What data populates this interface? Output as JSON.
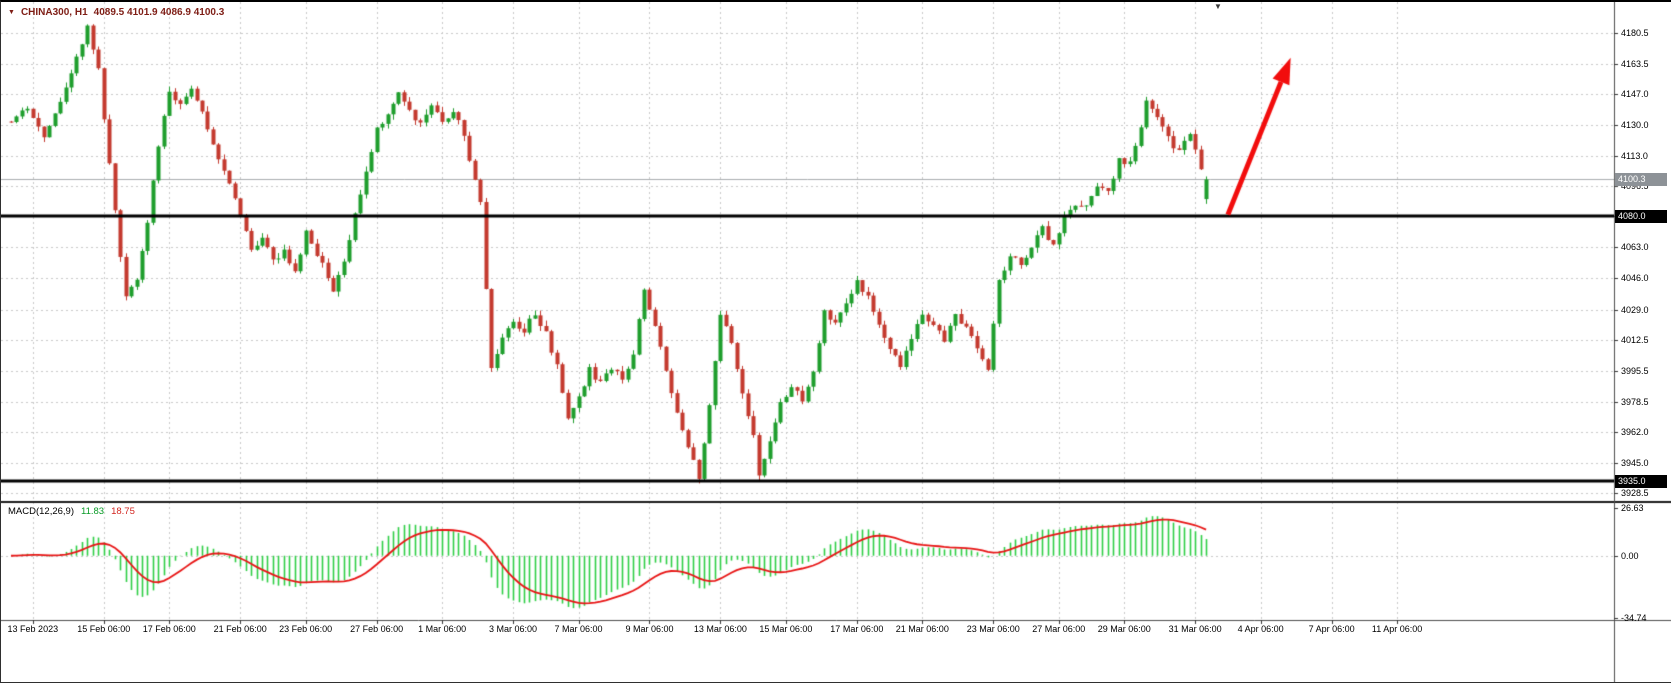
{
  "icons": {
    "dropdown": "▼",
    "shift_marker": "▼"
  },
  "header": {
    "symbol": "CHINA300, H1",
    "ohlc": "4089.5 4101.9 4086.9 4100.3"
  },
  "indicator": {
    "label": "MACD(12,26,9)",
    "macd_value": "11.83",
    "signal_value": "18.75"
  },
  "price_axis": {
    "current_price_label": "4100.3",
    "level_labels": [
      "4080.0",
      "3935.0"
    ]
  },
  "colors": {
    "background": "#ffffff",
    "grid": "#c9c9c9",
    "bull": "#1f9e2d",
    "bear": "#c43a2f",
    "macd_histogram": "#2fcf46",
    "macd_signal": "#e81414",
    "current_price_line": "#a9adb0",
    "level_line": "#000000",
    "arrow": "#f20d0d",
    "separator": "#1c1c1c",
    "axis_border": "#4d4d4d",
    "tick": "#333333"
  },
  "chart_data": {
    "type": "candlestick",
    "title": "CHINA300, H1",
    "timeframe": "H1",
    "bars": 220,
    "seed": 20230411,
    "noise": 2.2,
    "wick": 3.0,
    "last_bar_ohlc": {
      "open": 4089.5,
      "high": 4101.9,
      "low": 4086.9,
      "close": 4100.3
    },
    "current_price": 4100.3,
    "horizontal_levels": [
      4080.0,
      3935.0
    ],
    "price_axis_ticks": [
      4180.5,
      4163.5,
      4147.0,
      4130.0,
      4113.0,
      4096.5,
      4080.0,
      4063.0,
      4046.0,
      4029.0,
      4012.5,
      3995.5,
      3978.5,
      3962.0,
      3945.0,
      3928.5
    ],
    "price_anchors": [
      [
        0,
        4132
      ],
      [
        3,
        4140
      ],
      [
        6,
        4125
      ],
      [
        9,
        4142
      ],
      [
        12,
        4168
      ],
      [
        14,
        4184
      ],
      [
        16,
        4160
      ],
      [
        18,
        4110
      ],
      [
        20,
        4060
      ],
      [
        21,
        4035
      ],
      [
        23,
        4045
      ],
      [
        25,
        4075
      ],
      [
        27,
        4120
      ],
      [
        29,
        4148
      ],
      [
        31,
        4142
      ],
      [
        33,
        4150
      ],
      [
        36,
        4128
      ],
      [
        39,
        4105
      ],
      [
        42,
        4082
      ],
      [
        44,
        4062
      ],
      [
        46,
        4070
      ],
      [
        48,
        4055
      ],
      [
        50,
        4062
      ],
      [
        52,
        4048
      ],
      [
        54,
        4072
      ],
      [
        56,
        4060
      ],
      [
        58,
        4045
      ],
      [
        59,
        4038
      ],
      [
        61,
        4055
      ],
      [
        63,
        4080
      ],
      [
        65,
        4105
      ],
      [
        67,
        4128
      ],
      [
        69,
        4135
      ],
      [
        71,
        4146
      ],
      [
        73,
        4138
      ],
      [
        75,
        4130
      ],
      [
        77,
        4140
      ],
      [
        79,
        4132
      ],
      [
        81,
        4138
      ],
      [
        83,
        4125
      ],
      [
        85,
        4098
      ],
      [
        86,
        4088
      ],
      [
        87,
        4040
      ],
      [
        88,
        3996
      ],
      [
        90,
        4012
      ],
      [
        92,
        4022
      ],
      [
        94,
        4018
      ],
      [
        96,
        4026
      ],
      [
        98,
        4015
      ],
      [
        100,
        3998
      ],
      [
        102,
        3968
      ],
      [
        104,
        3982
      ],
      [
        106,
        3996
      ],
      [
        108,
        3988
      ],
      [
        110,
        3998
      ],
      [
        112,
        3990
      ],
      [
        114,
        4006
      ],
      [
        116,
        4038
      ],
      [
        118,
        4020
      ],
      [
        120,
        3996
      ],
      [
        122,
        3972
      ],
      [
        124,
        3952
      ],
      [
        126,
        3938
      ],
      [
        128,
        3976
      ],
      [
        130,
        4028
      ],
      [
        132,
        4010
      ],
      [
        134,
        3985
      ],
      [
        136,
        3958
      ],
      [
        137,
        3940
      ],
      [
        139,
        3958
      ],
      [
        141,
        3978
      ],
      [
        143,
        3988
      ],
      [
        145,
        3978
      ],
      [
        147,
        3996
      ],
      [
        149,
        4028
      ],
      [
        151,
        4020
      ],
      [
        153,
        4032
      ],
      [
        155,
        4046
      ],
      [
        157,
        4035
      ],
      [
        159,
        4020
      ],
      [
        161,
        4008
      ],
      [
        163,
        3999
      ],
      [
        165,
        4015
      ],
      [
        167,
        4028
      ],
      [
        169,
        4020
      ],
      [
        171,
        4012
      ],
      [
        173,
        4025
      ],
      [
        175,
        4018
      ],
      [
        177,
        4008
      ],
      [
        179,
        3996
      ],
      [
        181,
        4045
      ],
      [
        183,
        4060
      ],
      [
        185,
        4052
      ],
      [
        187,
        4062
      ],
      [
        189,
        4074
      ],
      [
        191,
        4064
      ],
      [
        193,
        4080
      ],
      [
        195,
        4088
      ],
      [
        197,
        4084
      ],
      [
        199,
        4096
      ],
      [
        201,
        4092
      ],
      [
        203,
        4112
      ],
      [
        205,
        4108
      ],
      [
        207,
        4130
      ],
      [
        208,
        4142
      ],
      [
        210,
        4133
      ],
      [
        212,
        4122
      ],
      [
        214,
        4116
      ],
      [
        216,
        4126
      ],
      [
        218,
        4108
      ],
      [
        219,
        4100
      ]
    ],
    "time_axis": {
      "labels": [
        "13 Feb 2023",
        "15 Feb 06:00",
        "17 Feb 06:00",
        "21 Feb 06:00",
        "23 Feb 06:00",
        "27 Feb 06:00",
        "1 Mar 06:00",
        "3 Mar 06:00",
        "7 Mar 06:00",
        "9 Mar 06:00",
        "13 Mar 06:00",
        "15 Mar 06:00",
        "17 Mar 06:00",
        "21 Mar 06:00",
        "23 Mar 06:00",
        "27 Mar 06:00",
        "29 Mar 06:00",
        "31 Mar 06:00",
        "4 Apr 06:00",
        "7 Apr 06:00",
        "11 Apr 06:00"
      ],
      "bar_indices": [
        4,
        17,
        29,
        42,
        54,
        67,
        79,
        92,
        104,
        117,
        130,
        142,
        155,
        167,
        180,
        192,
        204,
        217,
        229,
        242,
        254
      ]
    },
    "macd": {
      "fast": 12,
      "slow": 26,
      "signal": 9,
      "axis_ticks": [
        26.63,
        0.0,
        -34.74
      ],
      "range": [
        -34.74,
        26.63
      ]
    },
    "trend_arrow": {
      "from_bar": 223,
      "from_price": 4081,
      "to_bar": 234.5,
      "to_price": 4167
    }
  }
}
